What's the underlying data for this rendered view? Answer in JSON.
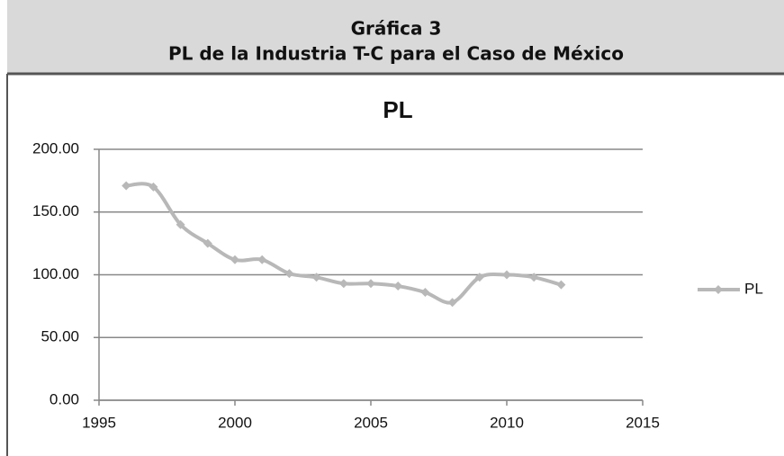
{
  "header": {
    "title": "Gráfica 3",
    "subtitle": "PL de la Industria T-C para el Caso de México"
  },
  "chart_data": {
    "type": "line",
    "title": "PL",
    "x": [
      1996,
      1997,
      1998,
      1999,
      2000,
      2001,
      2002,
      2003,
      2004,
      2005,
      2006,
      2007,
      2008,
      2009,
      2010,
      2011,
      2012
    ],
    "series": [
      {
        "name": "PL",
        "color": "#b8b8b8",
        "values": [
          171,
          170,
          140,
          125,
          112,
          112,
          101,
          98,
          93,
          93,
          91,
          86,
          78,
          98,
          100,
          98,
          92
        ]
      }
    ],
    "xlim": [
      1995,
      2015
    ],
    "xticks": [
      1995,
      2000,
      2005,
      2010,
      2015
    ],
    "ylim": [
      0,
      200
    ],
    "yticks": [
      {
        "value": 0,
        "label": "0.00"
      },
      {
        "value": 50,
        "label": "50.00"
      },
      {
        "value": 100,
        "label": "100.00"
      },
      {
        "value": 150,
        "label": "150.00"
      },
      {
        "value": 200,
        "label": "200.00"
      }
    ],
    "grid": true,
    "legend": "right"
  }
}
